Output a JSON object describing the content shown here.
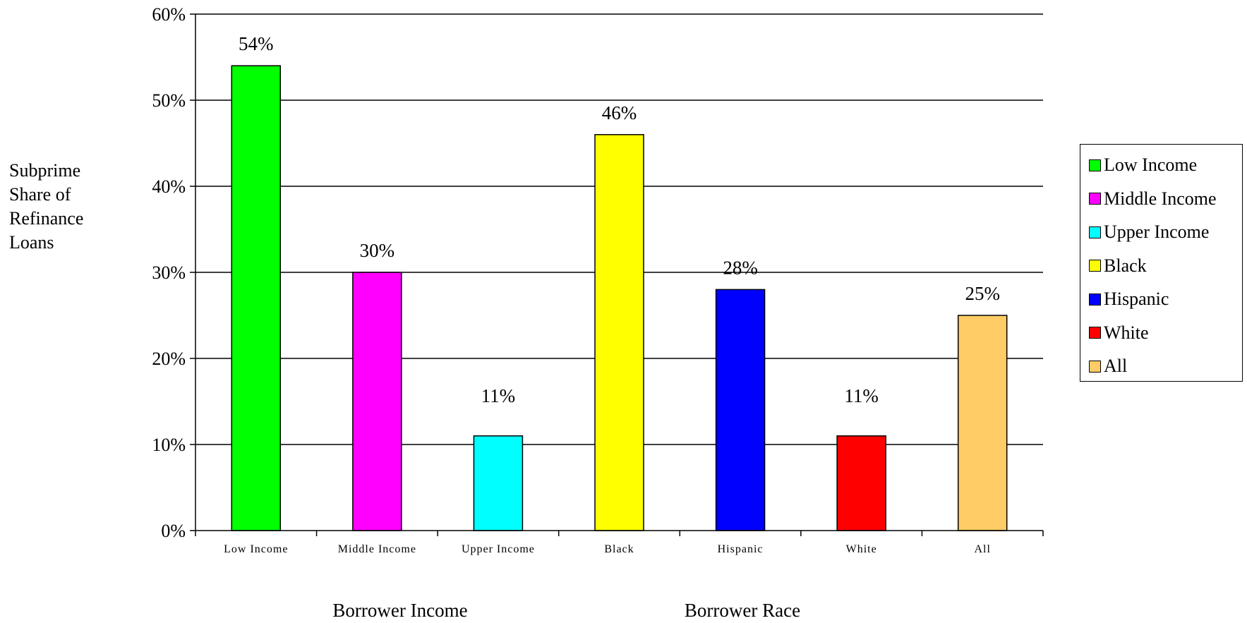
{
  "chart_data": {
    "type": "bar",
    "categories": [
      "Low Income",
      "Middle Income",
      "Upper Income",
      "Black",
      "Hispanic",
      "White",
      "All"
    ],
    "values": [
      54,
      30,
      11,
      46,
      28,
      11,
      25
    ],
    "value_labels": [
      "54%",
      "30%",
      "11%",
      "46%",
      "28%",
      "11%",
      "25%"
    ],
    "colors": [
      "#00ff00",
      "#ff00ff",
      "#00ffff",
      "#ffff00",
      "#0000ff",
      "#ff0000",
      "#ffcc66"
    ],
    "ylim": [
      0,
      60
    ],
    "yticks": [
      0,
      10,
      20,
      30,
      40,
      50,
      60
    ],
    "ytick_labels": [
      "0%",
      "10%",
      "20%",
      "30%",
      "40%",
      "50%",
      "60%"
    ],
    "ylabel_lines": [
      "Subprime",
      "Share of",
      "Refinance",
      "Loans"
    ],
    "group_labels": [
      "Borrower Income",
      "Borrower Race"
    ],
    "grid": true,
    "legend_position": "right",
    "legend": [
      "Low Income",
      "Middle Income",
      "Upper Income",
      "Black",
      "Hispanic",
      "White",
      "All"
    ]
  }
}
